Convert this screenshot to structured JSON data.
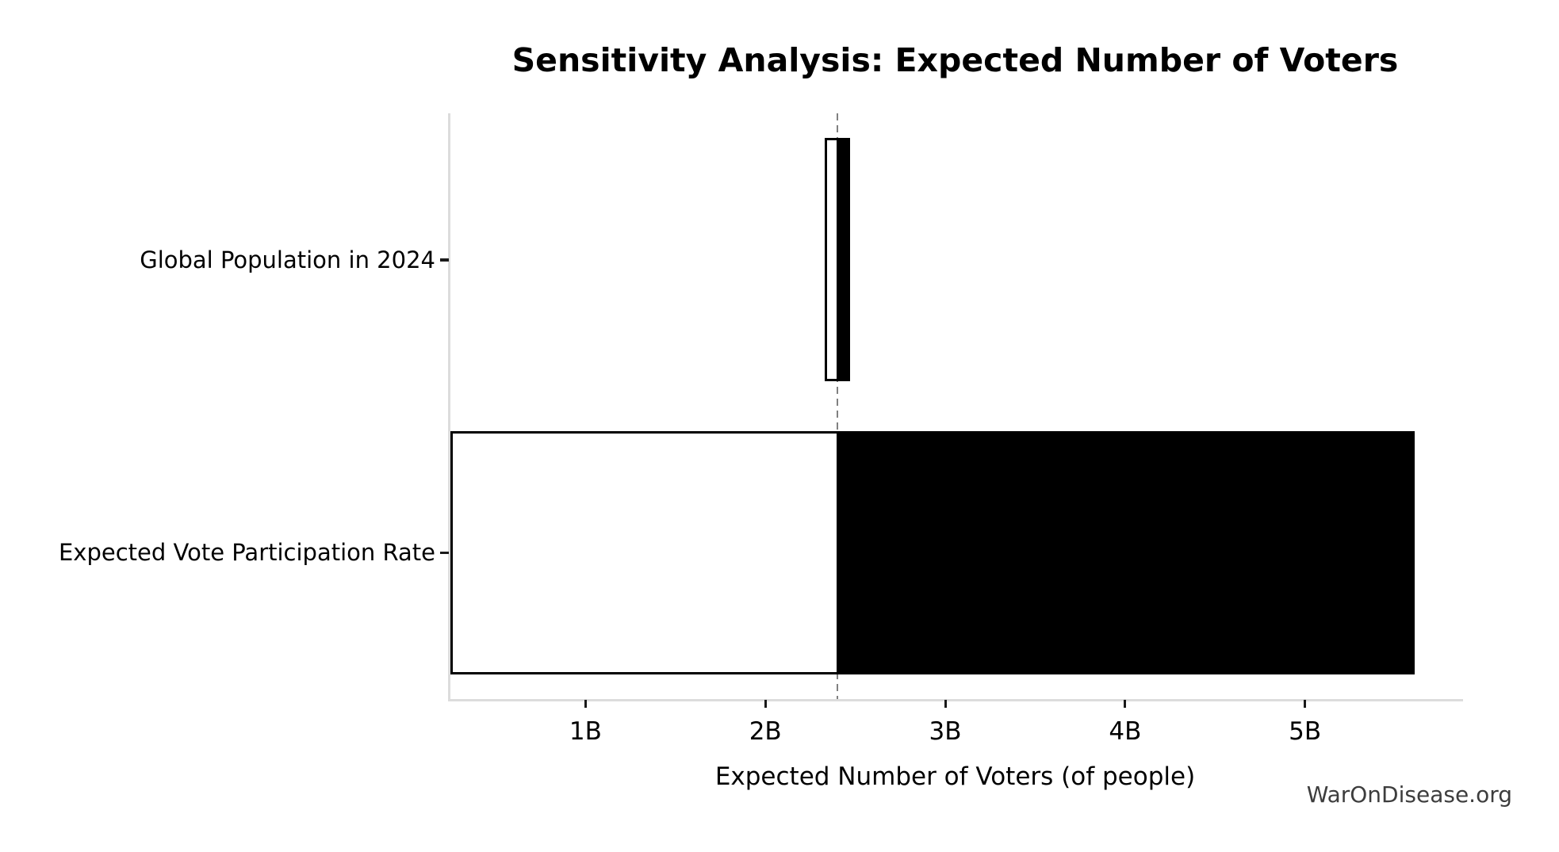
{
  "watermark": "WarOnDisease.org",
  "chart_data": {
    "type": "bar",
    "subtype": "tornado-sensitivity",
    "orientation": "horizontal",
    "title": "Sensitivity Analysis: Expected Number of Voters",
    "xlabel": "Expected Number of Voters (of people)",
    "unit": "billions of people",
    "base_value": 2.4,
    "xlim": [
      0.24,
      5.87
    ],
    "grid": false,
    "legend": false,
    "x_ticks": [
      {
        "value": 1,
        "label": "1B"
      },
      {
        "value": 2,
        "label": "2B"
      },
      {
        "value": 3,
        "label": "3B"
      },
      {
        "value": 4,
        "label": "4B"
      },
      {
        "value": 5,
        "label": "5B"
      }
    ],
    "categories": [
      "Global Population in 2024",
      "Expected Vote Participation Rate"
    ],
    "bars": [
      {
        "category": "Global Population in 2024",
        "low": 2.33,
        "high": 2.47
      },
      {
        "category": "Expected Vote Participation Rate",
        "low": 0.25,
        "high": 5.61
      }
    ],
    "colors": {
      "low_side_fill": "#ffffff",
      "high_side_fill": "#000000",
      "bar_border": "#000000",
      "baseline": "#808080",
      "spine": "#dcdcdc",
      "tick": "#1a1a1a",
      "text": "#000000",
      "watermark_text": "#3d3d3d"
    }
  }
}
